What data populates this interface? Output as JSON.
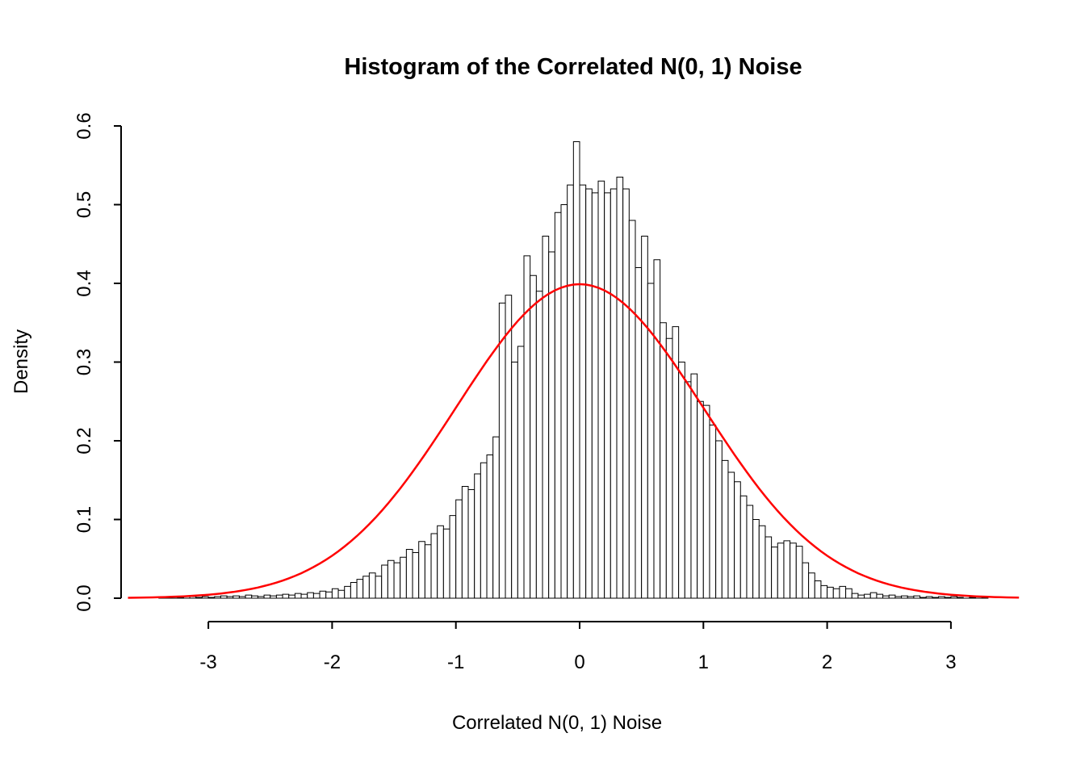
{
  "title": "Histogram of the Correlated N(0, 1) Noise",
  "colors": {
    "background": "#FFFFFF",
    "axis": "#000000",
    "bar_fill": "#FFFFFF",
    "bar_stroke": "#000000",
    "curve": "#FF0000"
  },
  "chart_data": {
    "type": "bar",
    "subtype": "histogram-with-normal-density-overlay",
    "title": "Histogram of the Correlated N(0, 1) Noise",
    "xlabel": "Correlated N(0, 1) Noise",
    "ylabel": "Density",
    "xlim": [
      -3.7,
      3.7
    ],
    "ylim": [
      0,
      0.6
    ],
    "x_tick_labels": [
      "-3",
      "-2",
      "-1",
      "0",
      "1",
      "2",
      "3"
    ],
    "y_tick_labels": [
      "0.0",
      "0.1",
      "0.2",
      "0.3",
      "0.4",
      "0.5",
      "0.6"
    ],
    "grid": false,
    "legend": "none",
    "histogram": {
      "bin_start": -3.4,
      "bin_width": 0.05,
      "densities": [
        0.001,
        0.002,
        0,
        0.001,
        0,
        0.002,
        0.001,
        0.002,
        0.001,
        0.002,
        0.003,
        0.002,
        0.003,
        0.002,
        0.004,
        0.003,
        0.002,
        0.004,
        0.003,
        0.004,
        0.005,
        0.004,
        0.006,
        0.005,
        0.007,
        0.006,
        0.009,
        0.008,
        0.012,
        0.01,
        0.015,
        0.02,
        0.024,
        0.028,
        0.032,
        0.028,
        0.042,
        0.048,
        0.045,
        0.052,
        0.062,
        0.058,
        0.072,
        0.068,
        0.082,
        0.092,
        0.088,
        0.105,
        0.125,
        0.142,
        0.138,
        0.158,
        0.172,
        0.182,
        0.205,
        0.375,
        0.385,
        0.3,
        0.32,
        0.435,
        0.41,
        0.39,
        0.46,
        0.44,
        0.49,
        0.5,
        0.525,
        0.58,
        0.525,
        0.52,
        0.515,
        0.53,
        0.515,
        0.52,
        0.535,
        0.52,
        0.48,
        0.42,
        0.46,
        0.4,
        0.43,
        0.35,
        0.33,
        0.345,
        0.3,
        0.275,
        0.285,
        0.25,
        0.245,
        0.22,
        0.2,
        0.175,
        0.16,
        0.148,
        0.13,
        0.118,
        0.1,
        0.092,
        0.078,
        0.065,
        0.07,
        0.073,
        0.07,
        0.066,
        0.045,
        0.032,
        0.022,
        0.016,
        0.014,
        0.012,
        0.015,
        0.012,
        0.006,
        0.004,
        0.005,
        0.007,
        0.005,
        0.003,
        0.004,
        0.002,
        0.003,
        0.002,
        0.003,
        0.001,
        0.002,
        0.001,
        0.002,
        0.001,
        0.002,
        0.001,
        0,
        0.001,
        0,
        0.001
      ]
    },
    "overlay_curve": {
      "distribution": "normal",
      "mean": 0,
      "sd": 1,
      "peak_density": 0.3989,
      "color": "#FF0000",
      "x_range": [
        -3.65,
        3.55
      ]
    }
  }
}
